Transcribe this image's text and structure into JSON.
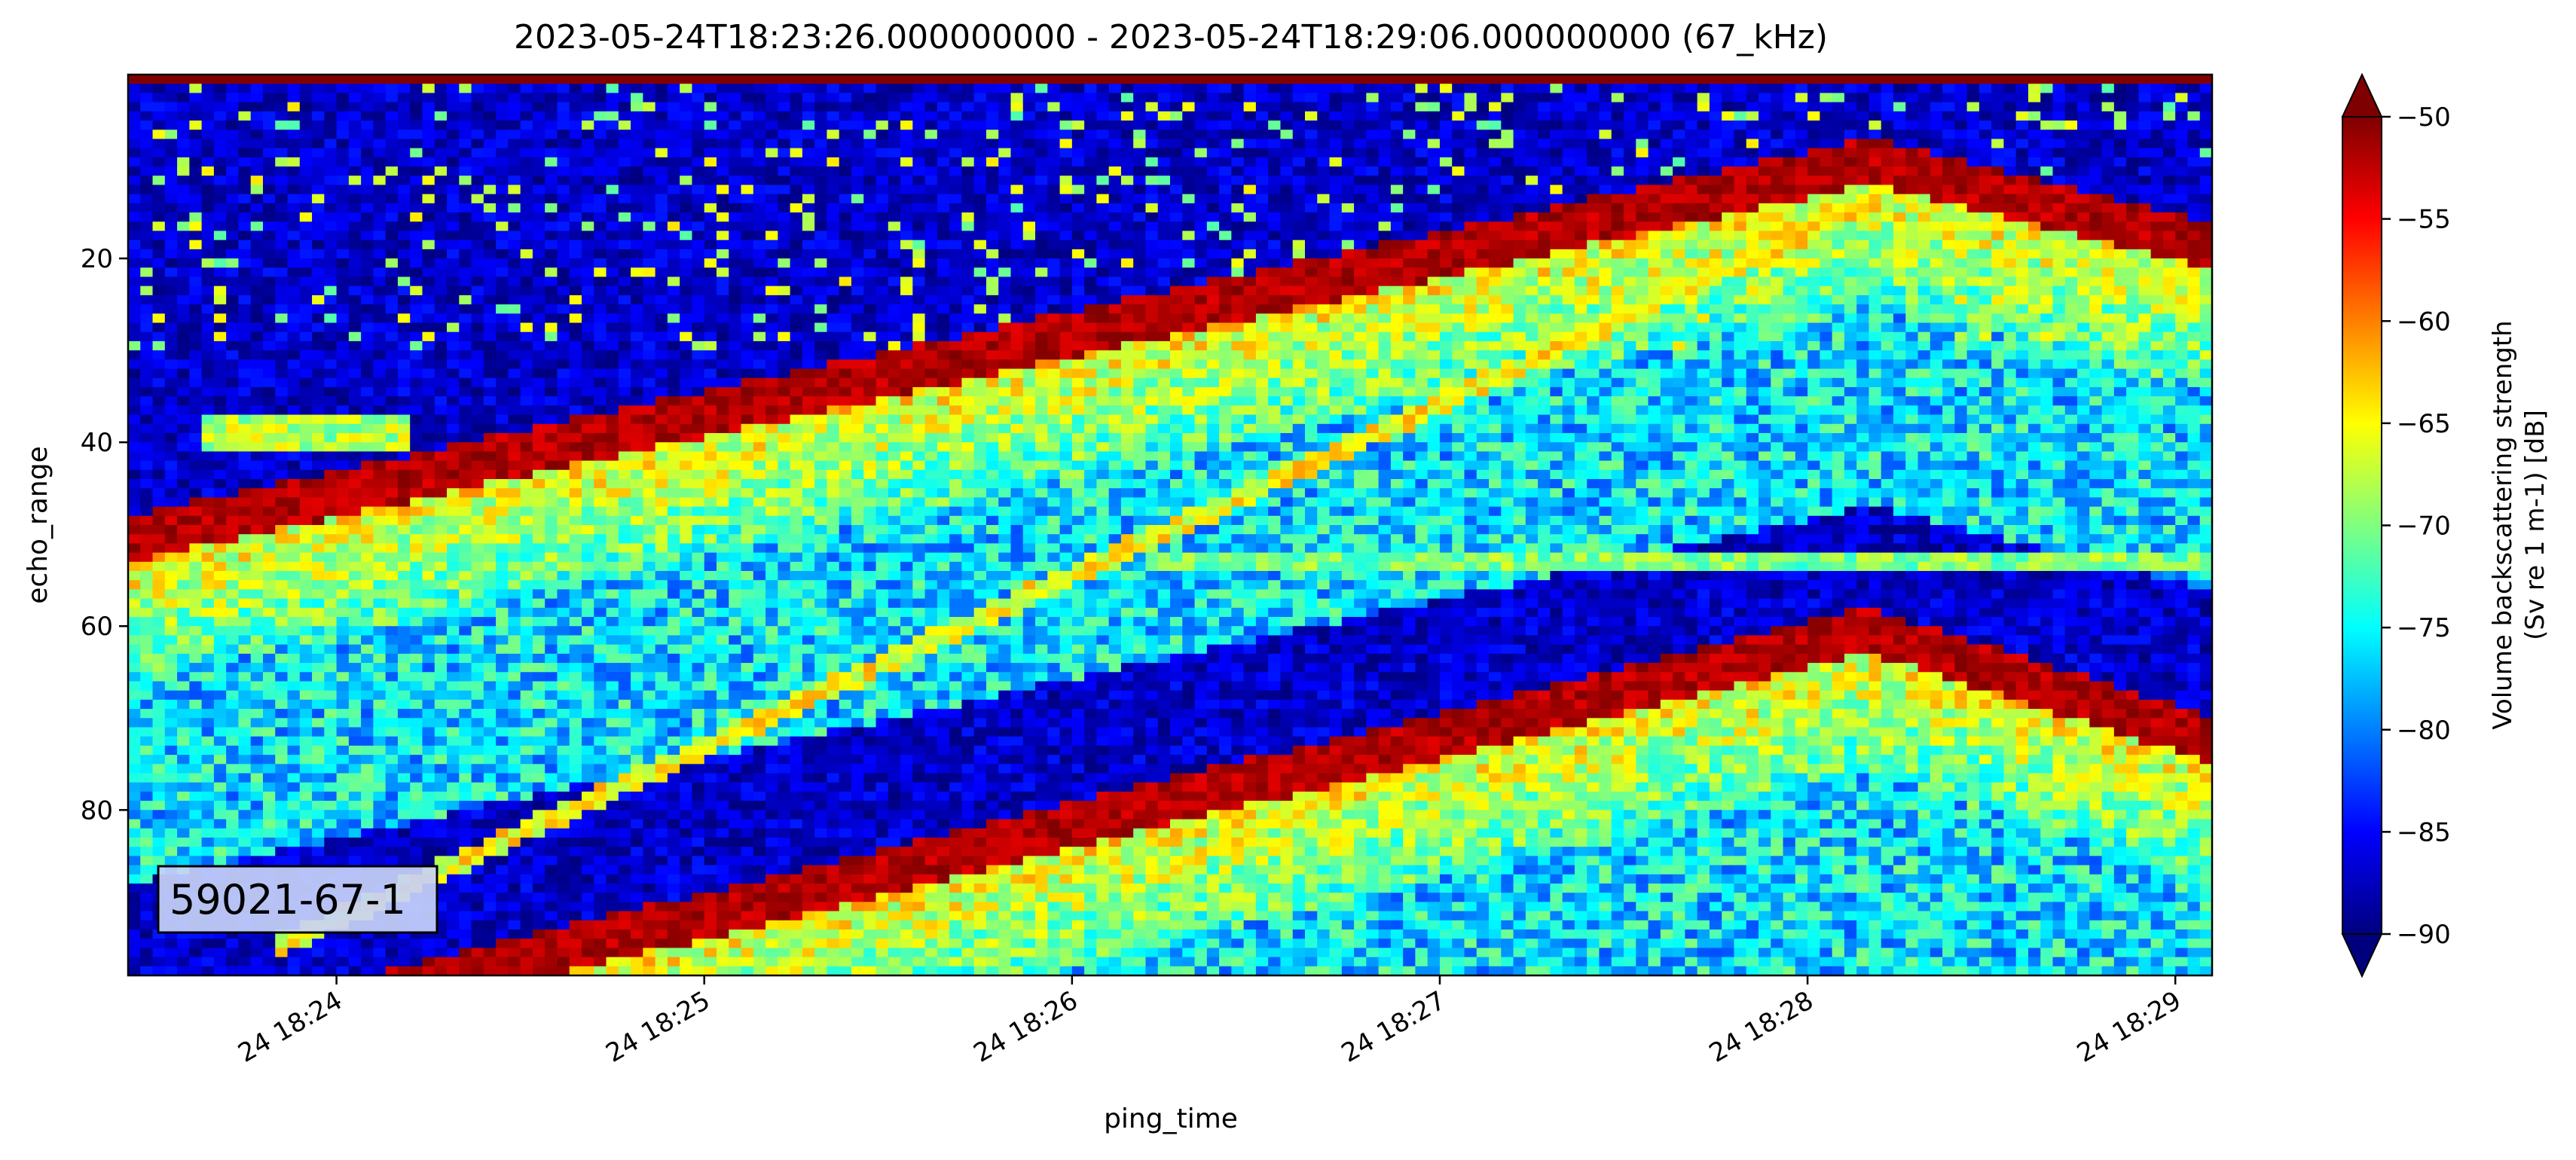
{
  "chart_data": {
    "type": "heatmap",
    "title": "2023-05-24T18:23:26.000000000 - 2023-05-24T18:29:06.000000000 (67_kHz)",
    "xlabel": "ping_time",
    "ylabel": "echo_range",
    "x_start": "2023-05-24T18:23:26",
    "x_end": "2023-05-24T18:29:06",
    "x_ticks": [
      {
        "time": "2023-05-24T18:24:00",
        "label": "24 18:24"
      },
      {
        "time": "2023-05-24T18:25:00",
        "label": "24 18:25"
      },
      {
        "time": "2023-05-24T18:26:00",
        "label": "24 18:26"
      },
      {
        "time": "2023-05-24T18:27:00",
        "label": "24 18:27"
      },
      {
        "time": "2023-05-24T18:28:00",
        "label": "24 18:28"
      },
      {
        "time": "2023-05-24T18:29:00",
        "label": "24 18:29"
      }
    ],
    "ylim": [
      98,
      0
    ],
    "y_ticks": [
      20,
      40,
      60,
      80
    ],
    "colorbar": {
      "label_line1": "Volume backscattering strength",
      "label_line2": "(Sv re 1 m-1) [dB]",
      "range": [
        -90,
        -50
      ],
      "ticks": [
        -50,
        -55,
        -60,
        -65,
        -70,
        -75,
        -80,
        -85,
        -90
      ],
      "extend": "both",
      "colormap": "jet"
    },
    "features": [
      {
        "type": "layer",
        "times": [
          "2023-05-24T18:23:26",
          "2023-05-24T18:28:10",
          "2023-05-24T18:29:06"
        ],
        "depths": [
          48,
          7,
          16
        ],
        "sv_db": -50
      },
      {
        "type": "line",
        "times": [
          "2023-05-24T18:23:50",
          "2023-05-24T18:28:10"
        ],
        "depths": [
          95,
          14
        ],
        "sv_db": -65
      },
      {
        "type": "line",
        "times": [
          "2023-05-24T18:26:15",
          "2023-05-24T18:29:06"
        ],
        "depths": [
          53,
          53
        ],
        "sv_db": -70
      },
      {
        "type": "layer",
        "times": [
          "2023-05-24T18:24:05",
          "2023-05-24T18:28:10",
          "2023-05-24T18:29:06"
        ],
        "depths": [
          98,
          58,
          70
        ],
        "sv_db": -50
      },
      {
        "type": "patch",
        "times": [
          "2023-05-24T18:23:38",
          "2023-05-24T18:24:12"
        ],
        "depths": [
          37,
          41
        ],
        "sv_db": -68
      }
    ],
    "background_sv_db": -87,
    "surface_band_depth": 1,
    "annotation": "59021-67-1"
  }
}
